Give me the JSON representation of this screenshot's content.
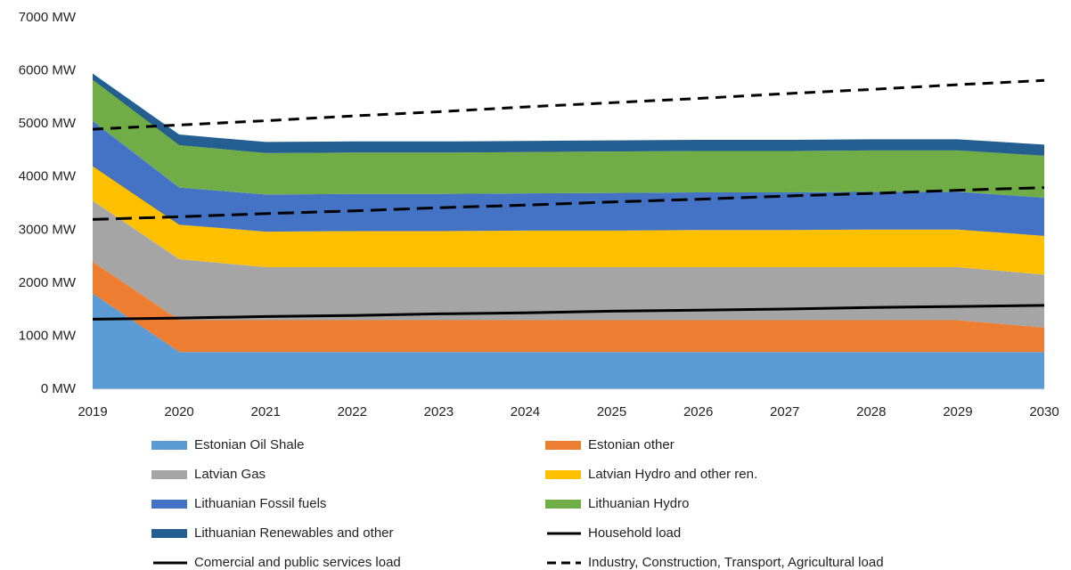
{
  "chart_data": {
    "type": "area",
    "stacked": true,
    "x": [
      2019,
      2020,
      2021,
      2022,
      2023,
      2024,
      2025,
      2026,
      2027,
      2028,
      2029,
      2030
    ],
    "xlim": [
      2019,
      2030
    ],
    "xticks": [
      2019,
      2020,
      2021,
      2022,
      2023,
      2024,
      2025,
      2026,
      2027,
      2028,
      2029,
      2030
    ],
    "ylim": [
      0,
      7000
    ],
    "yticks": [
      {
        "value": 0,
        "label": "0 MW"
      },
      {
        "value": 1000,
        "label": "1000 MW"
      },
      {
        "value": 2000,
        "label": "2000 MW"
      },
      {
        "value": 3000,
        "label": "3000 MW"
      },
      {
        "value": 4000,
        "label": "4000 MW"
      },
      {
        "value": 5000,
        "label": "5000 MW"
      },
      {
        "value": 6000,
        "label": "6000 MW"
      },
      {
        "value": 7000,
        "label": "7000 MW"
      }
    ],
    "grid": false,
    "series": [
      {
        "name": "Estonian Oil Shale",
        "type": "area",
        "color": "#5b9bd5",
        "values": [
          1800,
          700,
          700,
          700,
          700,
          700,
          700,
          700,
          700,
          700,
          700,
          700
        ]
      },
      {
        "name": "Estonian other",
        "type": "area",
        "color": "#ed7d31",
        "values": [
          600,
          600,
          600,
          600,
          600,
          600,
          600,
          600,
          600,
          600,
          600,
          460
        ]
      },
      {
        "name": "Latvian Gas",
        "type": "area",
        "color": "#a5a5a5",
        "values": [
          1150,
          1150,
          1000,
          1000,
          1000,
          1000,
          1000,
          1000,
          1000,
          1000,
          1000,
          1000
        ]
      },
      {
        "name": "Latvian Hydro and other ren.",
        "type": "area",
        "color": "#ffc000",
        "values": [
          650,
          650,
          670,
          680,
          680,
          690,
          690,
          700,
          700,
          710,
          710,
          730
        ]
      },
      {
        "name": "Lithuanian Fossil fuels",
        "type": "area",
        "color": "#4472c4",
        "values": [
          850,
          700,
          700,
          700,
          700,
          700,
          710,
          710,
          710,
          710,
          710,
          720
        ]
      },
      {
        "name": "Lithuanian Hydro",
        "type": "area",
        "color": "#70ad47",
        "values": [
          780,
          800,
          780,
          780,
          780,
          780,
          780,
          780,
          780,
          780,
          780,
          790
        ]
      },
      {
        "name": "Lithuanian Renewables and other",
        "type": "area",
        "color": "#255e91",
        "values": [
          120,
          200,
          210,
          210,
          210,
          210,
          210,
          210,
          210,
          210,
          210,
          210
        ]
      },
      {
        "name": "Household load",
        "type": "line",
        "style": "solid",
        "color": "#000000",
        "values": [
          1320,
          1340,
          1370,
          1390,
          1420,
          1440,
          1470,
          1490,
          1510,
          1540,
          1560,
          1580
        ]
      },
      {
        "name": "Comercial and public services load",
        "type": "line",
        "style": "longdash",
        "color": "#000000",
        "values": [
          3200,
          3250,
          3310,
          3360,
          3420,
          3470,
          3530,
          3580,
          3640,
          3690,
          3750,
          3800
        ]
      },
      {
        "name": "Industry, Construction, Transport, Agricultural load",
        "type": "line",
        "style": "dashed",
        "color": "#000000",
        "values": [
          4900,
          4980,
          5060,
          5150,
          5230,
          5320,
          5400,
          5480,
          5570,
          5650,
          5740,
          5820
        ]
      }
    ]
  }
}
